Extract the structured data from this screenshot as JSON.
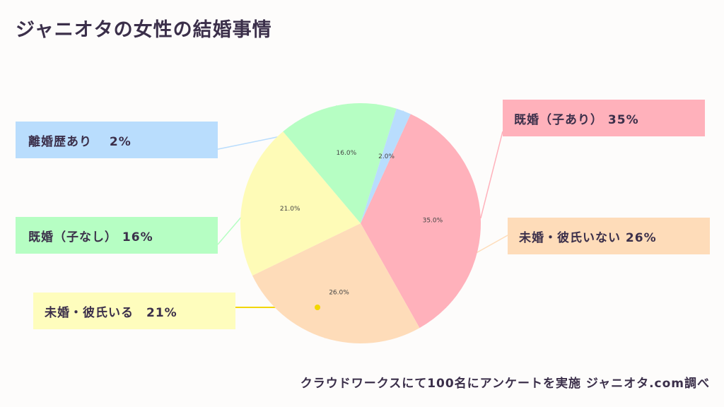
{
  "title": "ジャニオタの女性の結婚事情",
  "footer": "クラウドワークスにて100名にアンケートを実施 ジャニオタ.com調べ",
  "chart_data": {
    "type": "pie",
    "slices": [
      {
        "label": "既婚（子あり） 35%",
        "value": 35.0,
        "pct_label": "35.0%",
        "color": "#ffb1bb",
        "box_color": "#ffb1bb"
      },
      {
        "label": "未婚・彼氏いない 26%",
        "value": 26.0,
        "pct_label": "26.0%",
        "color": "#fedcb9",
        "box_color": "#fedcb9"
      },
      {
        "label": "未婚・彼氏いる　21%",
        "value": 21.0,
        "pct_label": "21.0%",
        "color": "#fefbb7",
        "box_color": "#fefdbd"
      },
      {
        "label": "既婚（子なし） 16%",
        "value": 16.0,
        "pct_label": "16.0%",
        "color": "#b6fec3",
        "box_color": "#b6fec3"
      },
      {
        "label": "離婚歴あり　 2%",
        "value": 2.0,
        "pct_label": "2.0%",
        "color": "#b9ddfd",
        "box_color": "#b9ddfd"
      }
    ],
    "start_angle_deg": 24.6,
    "direction": "clockwise"
  }
}
